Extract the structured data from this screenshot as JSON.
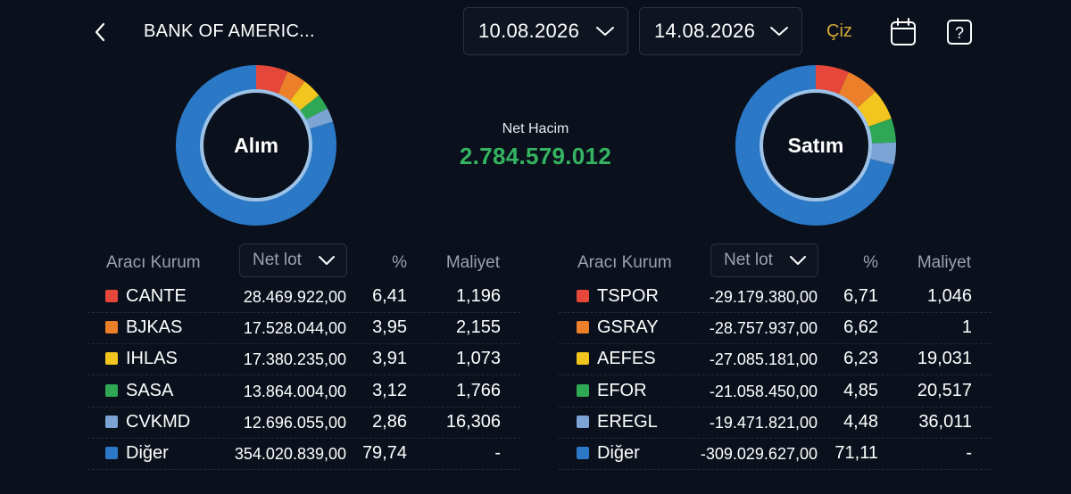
{
  "header": {
    "title": "BANK OF AMERIC...",
    "date_start": "10.08.2026",
    "date_end": "14.08.2026",
    "ciz_label": "Çiz",
    "icons": [
      "chevron-left-icon",
      "chevron-down-icon",
      "calendar-icon",
      "help-icon"
    ]
  },
  "summary": {
    "net_label": "Net Hacim",
    "net_value": "2.784.579.012",
    "net_color": "#34b461"
  },
  "buy": {
    "donut_label": "Alım",
    "headers": {
      "broker": "Aracı Kurum",
      "net_select": "Net lot",
      "pct": "%",
      "cost": "Maliyet"
    },
    "rows": [
      {
        "name": "CANTE",
        "lot": "28.469.922,00",
        "pct": "6,41",
        "pct_value": 6.41,
        "cost": "1,196",
        "color": "#e5483b"
      },
      {
        "name": "BJKAS",
        "lot": "17.528.044,00",
        "pct": "3,95",
        "pct_value": 3.95,
        "cost": "2,155",
        "color": "#ec7f2a"
      },
      {
        "name": "IHLAS",
        "lot": "17.380.235,00",
        "pct": "3,91",
        "pct_value": 3.91,
        "cost": "1,073",
        "color": "#f3c51f"
      },
      {
        "name": "SASA",
        "lot": "13.864.004,00",
        "pct": "3,12",
        "pct_value": 3.12,
        "cost": "1,766",
        "color": "#2fa856"
      },
      {
        "name": "CVKMD",
        "lot": "12.696.055,00",
        "pct": "2,86",
        "pct_value": 2.86,
        "cost": "16,306",
        "color": "#7ba4d4"
      },
      {
        "name": "Diğer",
        "lot": "354.020.839,00",
        "pct": "79,74",
        "pct_value": 79.74,
        "cost": "-",
        "color": "#2a78c6"
      }
    ]
  },
  "sell": {
    "donut_label": "Satım",
    "headers": {
      "broker": "Aracı Kurum",
      "net_select": "Net lot",
      "pct": "%",
      "cost": "Maliyet"
    },
    "rows": [
      {
        "name": "TSPOR",
        "lot": "-29.179.380,00",
        "pct": "6,71",
        "pct_value": 6.71,
        "cost": "1,046",
        "color": "#e5483b"
      },
      {
        "name": "GSRAY",
        "lot": "-28.757.937,00",
        "pct": "6,62",
        "pct_value": 6.62,
        "cost": "1",
        "color": "#ec7f2a"
      },
      {
        "name": "AEFES",
        "lot": "-27.085.181,00",
        "pct": "6,23",
        "pct_value": 6.23,
        "cost": "19,031",
        "color": "#f3c51f"
      },
      {
        "name": "EFOR",
        "lot": "-21.058.450,00",
        "pct": "4,85",
        "pct_value": 4.85,
        "cost": "20,517",
        "color": "#2fa856"
      },
      {
        "name": "EREGL",
        "lot": "-19.471.821,00",
        "pct": "4,48",
        "pct_value": 4.48,
        "cost": "36,011",
        "color": "#7ba4d4"
      },
      {
        "name": "Diğer",
        "lot": "-309.029.627,00",
        "pct": "71,11",
        "pct_value": 71.11,
        "cost": "-",
        "color": "#2a78c6"
      }
    ]
  }
}
